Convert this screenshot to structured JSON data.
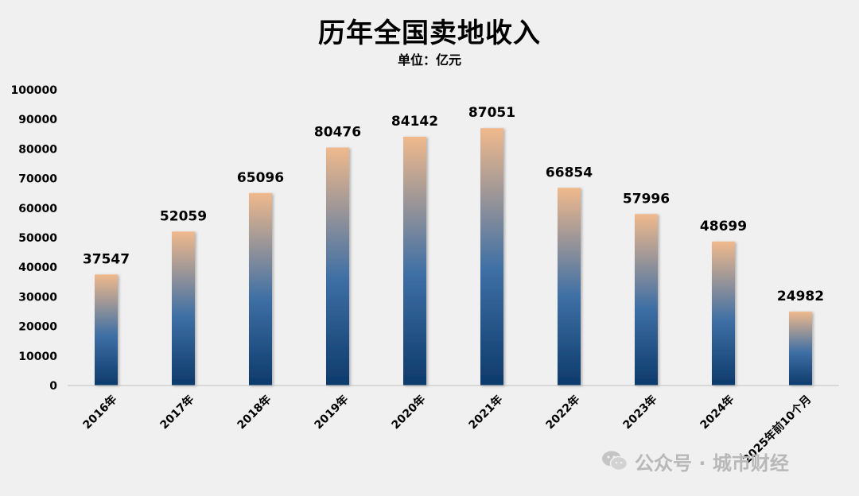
{
  "chart_data": {
    "type": "bar",
    "title": "历年全国卖地收入",
    "subtitle": "单位：亿元",
    "categories": [
      "2016年",
      "2017年",
      "2018年",
      "2019年",
      "2020年",
      "2021年",
      "2022年",
      "2023年",
      "2024年",
      "2025年前10个月"
    ],
    "values": [
      37547,
      52059,
      65096,
      80476,
      84142,
      87051,
      66854,
      57996,
      48699,
      24982
    ],
    "ylim": [
      0,
      100000
    ],
    "yticks": [
      0,
      10000,
      20000,
      30000,
      40000,
      50000,
      60000,
      70000,
      80000,
      90000,
      100000
    ],
    "grid": false,
    "legend": "none",
    "colors": {
      "bar_top": "#f0b98c",
      "bar_mid": "#3e6fa5",
      "bar_bottom": "#0d3a6b",
      "background": "#f0f0f0"
    }
  },
  "watermark": {
    "icon": "wechat-icon",
    "text": "公众号 · 城市财经"
  }
}
